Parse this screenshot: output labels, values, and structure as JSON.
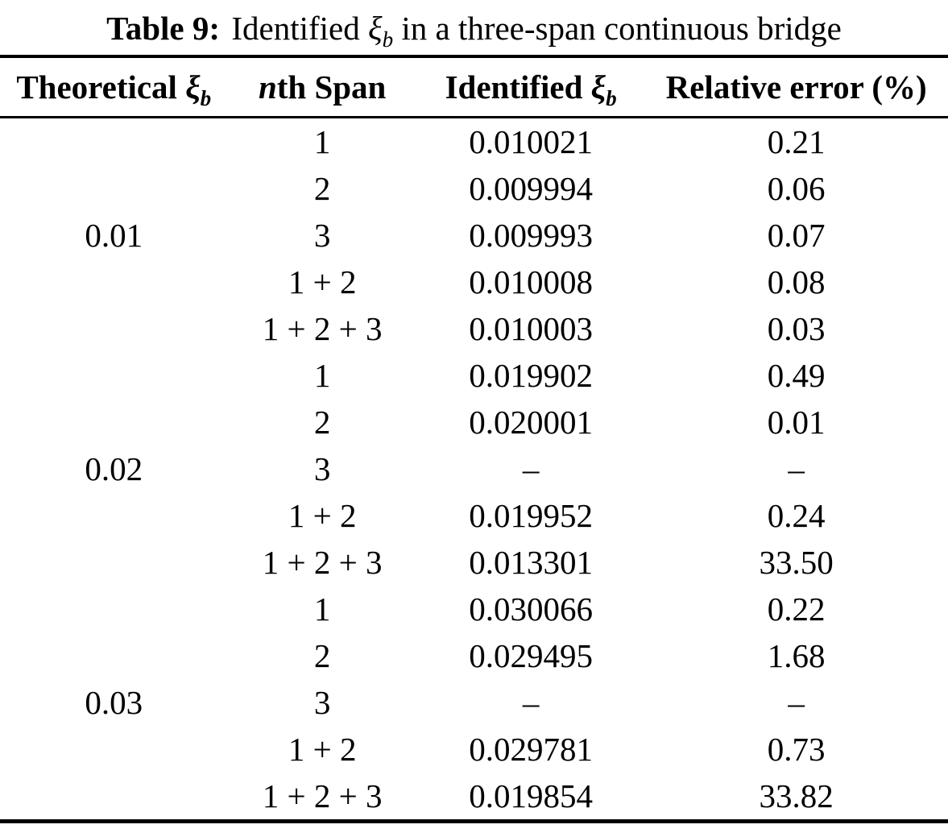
{
  "colors": {
    "text": "#000000",
    "background": "#ffffff"
  },
  "caption": {
    "label": "Table 9:",
    "before_math": "Identified",
    "xi": "ξ",
    "xi_sub": "b",
    "after_math": "in a three-span continuous bridge"
  },
  "header": {
    "col1_text": "Theoretical",
    "col1_xi": "ξ",
    "col1_sub": "b",
    "col2_n": "n",
    "col2_rest": "th Span",
    "col3_text": "Identified",
    "col3_xi": "ξ",
    "col3_sub": "b",
    "col4": "Relative error (%)"
  },
  "table": {
    "groups": [
      {
        "theoretical": "0.01",
        "rows": [
          {
            "span": "1",
            "identified": "0.010021",
            "error": "0.21"
          },
          {
            "span": "2",
            "identified": "0.009994",
            "error": "0.06"
          },
          {
            "span": "3",
            "identified": "0.009993",
            "error": "0.07"
          },
          {
            "span": "1 + 2",
            "identified": "0.010008",
            "error": "0.08"
          },
          {
            "span": "1 + 2 + 3",
            "identified": "0.010003",
            "error": "0.03"
          }
        ]
      },
      {
        "theoretical": "0.02",
        "rows": [
          {
            "span": "1",
            "identified": "0.019902",
            "error": "0.49"
          },
          {
            "span": "2",
            "identified": "0.020001",
            "error": "0.01"
          },
          {
            "span": "3",
            "identified": "–",
            "error": "–"
          },
          {
            "span": "1 + 2",
            "identified": "0.019952",
            "error": "0.24"
          },
          {
            "span": "1 + 2 + 3",
            "identified": "0.013301",
            "error": "33.50"
          }
        ]
      },
      {
        "theoretical": "0.03",
        "rows": [
          {
            "span": "1",
            "identified": "0.030066",
            "error": "0.22"
          },
          {
            "span": "2",
            "identified": "0.029495",
            "error": "1.68"
          },
          {
            "span": "3",
            "identified": "–",
            "error": "–"
          },
          {
            "span": "1 + 2",
            "identified": "0.029781",
            "error": "0.73"
          },
          {
            "span": "1 + 2 + 3",
            "identified": "0.019854",
            "error": "33.82"
          }
        ]
      }
    ]
  }
}
